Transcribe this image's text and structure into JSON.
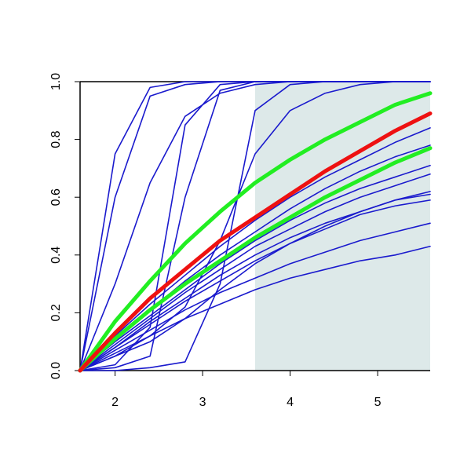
{
  "chart_data": {
    "type": "line",
    "x": [
      1.6,
      2.0,
      2.4,
      2.8,
      3.2,
      3.6,
      4.0,
      4.4,
      4.8,
      5.2,
      5.6
    ],
    "xlim": [
      1.6,
      5.6
    ],
    "xticks": [
      2,
      3,
      4,
      5
    ],
    "ylim": [
      0,
      1
    ],
    "yticks": [
      {
        "value": 0,
        "label": "0.0"
      },
      0.2,
      0.4,
      0.6,
      0.8,
      {
        "value": 1,
        "label": "1.0"
      }
    ],
    "shaded_region": [
      3.6,
      5.6
    ],
    "shade_color": "#dde9e9",
    "series": [
      {
        "color": "#1a1acd",
        "line_width": 1.6,
        "values": [
          0,
          0.75,
          0.98,
          1,
          1,
          1,
          1,
          1,
          1,
          1,
          1
        ]
      },
      {
        "color": "#1a1acd",
        "line_width": 1.6,
        "values": [
          0,
          0.6,
          0.95,
          0.99,
          1,
          1,
          1,
          1,
          1,
          1,
          1
        ]
      },
      {
        "color": "#1a1acd",
        "line_width": 1.6,
        "values": [
          0,
          0.3,
          0.65,
          0.88,
          0.96,
          0.99,
          1,
          1,
          1,
          1,
          1
        ]
      },
      {
        "color": "#1a1acd",
        "line_width": 1.6,
        "values": [
          0,
          0.01,
          0.05,
          0.6,
          0.97,
          1,
          1,
          1,
          1,
          1,
          1
        ]
      },
      {
        "color": "#1a1acd",
        "line_width": 1.6,
        "values": [
          0,
          0.02,
          0.15,
          0.85,
          0.99,
          1,
          1,
          1,
          1,
          1,
          1
        ]
      },
      {
        "color": "#1a1acd",
        "line_width": 1.6,
        "values": [
          0,
          0,
          0.01,
          0.03,
          0.3,
          0.9,
          0.99,
          1,
          1,
          1,
          1
        ]
      },
      {
        "color": "#1a1acd",
        "line_width": 1.6,
        "values": [
          0,
          0.05,
          0.12,
          0.22,
          0.45,
          0.75,
          0.9,
          0.96,
          0.99,
          1,
          1
        ]
      },
      {
        "color": "#1a1acd",
        "line_width": 1.6,
        "values": [
          0,
          0.06,
          0.12,
          0.18,
          0.23,
          0.28,
          0.32,
          0.35,
          0.38,
          0.4,
          0.43
        ]
      },
      {
        "color": "#1a1acd",
        "line_width": 1.6,
        "values": [
          0,
          0.07,
          0.14,
          0.21,
          0.27,
          0.32,
          0.37,
          0.41,
          0.45,
          0.48,
          0.51
        ]
      },
      {
        "color": "#1a1acd",
        "line_width": 1.6,
        "values": [
          0,
          0.08,
          0.16,
          0.24,
          0.31,
          0.38,
          0.44,
          0.49,
          0.54,
          0.57,
          0.59
        ]
      },
      {
        "color": "#1a1acd",
        "line_width": 1.6,
        "values": [
          0,
          0.08,
          0.17,
          0.25,
          0.33,
          0.4,
          0.46,
          0.51,
          0.55,
          0.59,
          0.62
        ]
      },
      {
        "color": "#1a1acd",
        "line_width": 1.6,
        "values": [
          0,
          0.09,
          0.18,
          0.27,
          0.35,
          0.43,
          0.49,
          0.55,
          0.6,
          0.64,
          0.68
        ]
      },
      {
        "color": "#1a1acd",
        "line_width": 1.6,
        "values": [
          0,
          0.1,
          0.19,
          0.28,
          0.37,
          0.45,
          0.52,
          0.58,
          0.63,
          0.67,
          0.71
        ]
      },
      {
        "color": "#1a1acd",
        "line_width": 1.6,
        "values": [
          0,
          0.11,
          0.21,
          0.31,
          0.4,
          0.48,
          0.56,
          0.63,
          0.69,
          0.74,
          0.78
        ]
      },
      {
        "color": "#1a1acd",
        "line_width": 1.6,
        "values": [
          0,
          0.12,
          0.23,
          0.33,
          0.43,
          0.52,
          0.6,
          0.67,
          0.73,
          0.79,
          0.84
        ]
      },
      {
        "color": "#1a1acd",
        "line_width": 1.6,
        "values": [
          0,
          0.05,
          0.1,
          0.18,
          0.28,
          0.37,
          0.44,
          0.5,
          0.55,
          0.59,
          0.61
        ]
      },
      {
        "color": "#22ee22",
        "line_width": 5,
        "values": [
          0,
          0.17,
          0.31,
          0.44,
          0.55,
          0.65,
          0.73,
          0.8,
          0.86,
          0.92,
          0.96
        ]
      },
      {
        "color": "#22ee22",
        "line_width": 5,
        "values": [
          0,
          0.11,
          0.21,
          0.3,
          0.38,
          0.46,
          0.53,
          0.6,
          0.66,
          0.72,
          0.77
        ]
      },
      {
        "color": "#ee1111",
        "line_width": 5,
        "values": [
          0,
          0.13,
          0.25,
          0.35,
          0.45,
          0.53,
          0.61,
          0.69,
          0.76,
          0.83,
          0.89
        ]
      }
    ]
  }
}
